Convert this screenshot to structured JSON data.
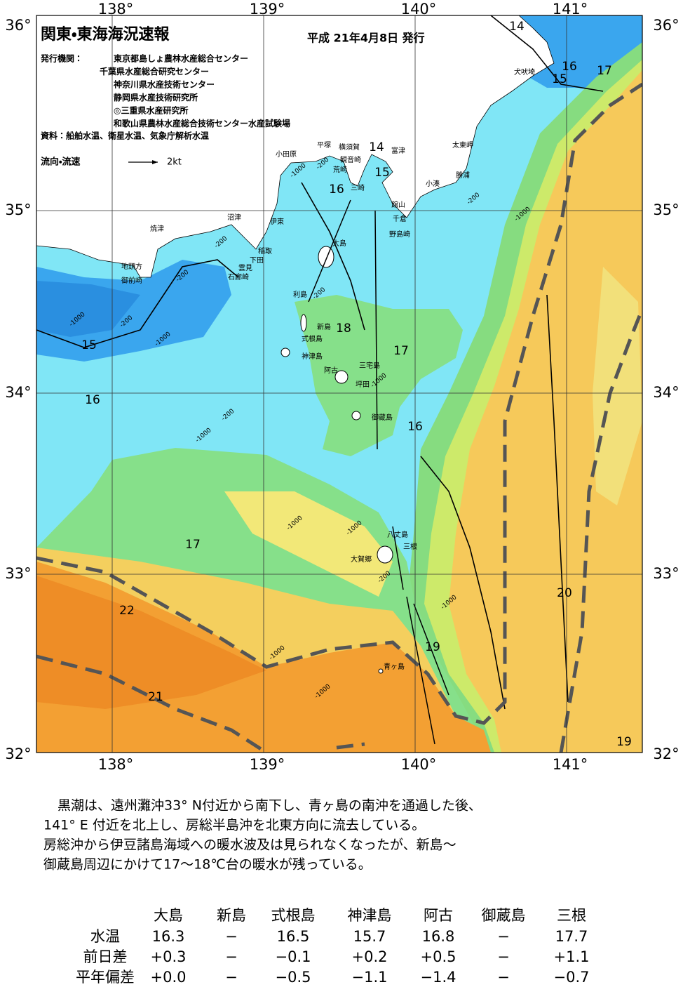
{
  "header": {
    "title": "関東・東海海況速報",
    "date": "平成 21年4月8日 発行",
    "issuer_label": "発行機関：",
    "issuers": [
      "東京都島しょ農林水産総合センター",
      "千葉県水産総合研究センター",
      "神奈川県水産技術センター",
      "静岡県水産技術研究所",
      "◎三重県水産研究所",
      "和歌山県農林水産総合技術センター水産試験場"
    ],
    "source": "資料：船舶水温、衛星水温、気象庁解析水温",
    "legend_label": "流向・流速",
    "legend_scale": "2kt"
  },
  "map": {
    "lon_labels": [
      "138°",
      "139°",
      "140°",
      "141°"
    ],
    "lat_labels": [
      "36°",
      "35°",
      "34°",
      "33°",
      "32°"
    ],
    "places": [
      "犬吠埼",
      "太東岬",
      "勝浦",
      "小湊",
      "富津",
      "横須賀",
      "平塚",
      "小田原",
      "観音崎",
      "荒崎",
      "三崎",
      "館山",
      "千倉",
      "野島崎",
      "沼津",
      "伊東",
      "焼津",
      "稲取",
      "下田",
      "雲見",
      "石廊崎",
      "地頭方",
      "御前崎",
      "大島",
      "利島",
      "新島",
      "式根島",
      "神津島",
      "三宅島",
      "坪田",
      "阿古",
      "御蔵島",
      "八丈島",
      "三根",
      "大賀郷",
      "青ヶ島"
    ],
    "temp_labels": [
      "14",
      "14",
      "16",
      "15",
      "17",
      "15",
      "16",
      "18",
      "17",
      "16",
      "15",
      "16",
      "17",
      "22",
      "21",
      "20",
      "19",
      "19"
    ],
    "depth_labels": [
      "-200",
      "-1000",
      "-200",
      "-1000",
      "-200",
      "-200",
      "-1000",
      "-200",
      "-1000",
      "-200",
      "-1000",
      "-200",
      "-1000",
      "-1000",
      "-1000",
      "-200",
      "-1000",
      "-1000",
      "-1000"
    ]
  },
  "summary": [
    "黒潮は、遠州灘沖33° N付近から南下し、青ヶ島の南沖を通過した後、",
    "141° E 付近を北上し、房総半島沖を北東方向に流去している。",
    "房総沖から伊豆諸島海域への暖水波及は見られなくなったが、新島～",
    "御蔵島周辺にかけて17～18℃台の暖水が残っている。"
  ],
  "table": {
    "columns": [
      "大島",
      "新島",
      "式根島",
      "神津島",
      "阿古",
      "御蔵島",
      "三根"
    ],
    "rows": [
      {
        "label": "水温",
        "cells": [
          "16.3",
          "−",
          "16.5",
          "15.7",
          "16.8",
          "−",
          "17.7"
        ]
      },
      {
        "label": "前日差",
        "cells": [
          "+0.3",
          "−",
          "−0.1",
          "+0.2",
          "+0.5",
          "−",
          "+1.1"
        ]
      },
      {
        "label": "平年偏差",
        "cells": [
          "+0.0",
          "−",
          "−0.5",
          "−1.1",
          "−1.4",
          "−",
          "−0.7"
        ]
      }
    ]
  }
}
